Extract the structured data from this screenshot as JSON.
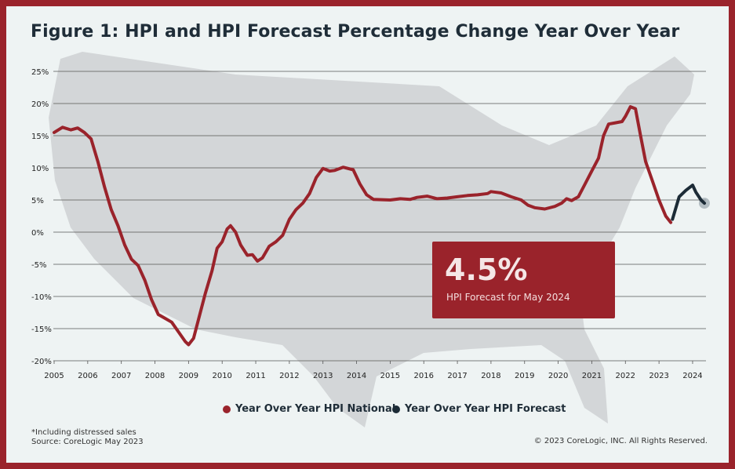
{
  "title": "Figure 1: HPI and HPI Forecast Percentage Change Year Over Year",
  "colors": {
    "national": "#9a232b",
    "forecast": "#1c2b36",
    "map": "#d3d6d8",
    "background": "#eef3f3",
    "border": "#9a232b"
  },
  "callout": {
    "value": "4.5%",
    "label": "HPI Forecast for May 2024"
  },
  "legend": [
    {
      "label": "Year Over Year HPI National",
      "color": "#9a232b"
    },
    {
      "label": "Year Over Year HPI Forecast",
      "color": "#1c2b36"
    }
  ],
  "footnote": "*Including distressed sales",
  "source": "Source: CoreLogic May 2023",
  "copyright": "© 2023 CoreLogic, INC. All Rights Reserved.",
  "chart_data": {
    "type": "line",
    "title": "Figure 1: HPI and HPI Forecast Percentage Change Year Over Year",
    "xlim": [
      2005,
      2024.5
    ],
    "ylim": [
      -20,
      25
    ],
    "grid": true,
    "legend_position": "bottom",
    "x_ticks": [
      "2005",
      "2006",
      "2007",
      "2008",
      "2009",
      "2010",
      "2011",
      "2012",
      "2013",
      "2014",
      "2015",
      "2016",
      "2017",
      "2018",
      "2019",
      "2020",
      "2021",
      "2022",
      "2023",
      "2024"
    ],
    "y_ticks": [
      "25%",
      "20%",
      "15%",
      "10%",
      "5%",
      "0%",
      "-5%",
      "-10%",
      "-15%",
      "-20%"
    ],
    "series": [
      {
        "name": "Year Over Year HPI National",
        "color": "#9a232b",
        "points": [
          [
            2005.0,
            15.5
          ],
          [
            2005.25,
            16.3
          ],
          [
            2005.5,
            15.9
          ],
          [
            2005.7,
            16.2
          ],
          [
            2005.9,
            15.5
          ],
          [
            2006.1,
            14.5
          ],
          [
            2006.3,
            11
          ],
          [
            2006.5,
            7
          ],
          [
            2006.7,
            3.5
          ],
          [
            2006.9,
            1
          ],
          [
            2007.1,
            -2
          ],
          [
            2007.3,
            -4.2
          ],
          [
            2007.5,
            -5.2
          ],
          [
            2007.7,
            -7.5
          ],
          [
            2007.9,
            -10.5
          ],
          [
            2008.1,
            -12.8
          ],
          [
            2008.3,
            -13.4
          ],
          [
            2008.5,
            -14
          ],
          [
            2008.7,
            -15.5
          ],
          [
            2008.9,
            -17
          ],
          [
            2009.0,
            -17.5
          ],
          [
            2009.15,
            -16.5
          ],
          [
            2009.3,
            -13.5
          ],
          [
            2009.5,
            -9.5
          ],
          [
            2009.7,
            -6
          ],
          [
            2009.85,
            -2.5
          ],
          [
            2010.0,
            -1.5
          ],
          [
            2010.15,
            0.5
          ],
          [
            2010.25,
            1
          ],
          [
            2010.4,
            0
          ],
          [
            2010.55,
            -2
          ],
          [
            2010.75,
            -3.6
          ],
          [
            2010.9,
            -3.5
          ],
          [
            2011.05,
            -4.5
          ],
          [
            2011.2,
            -4
          ],
          [
            2011.4,
            -2.2
          ],
          [
            2011.6,
            -1.5
          ],
          [
            2011.8,
            -0.5
          ],
          [
            2012.0,
            2
          ],
          [
            2012.2,
            3.5
          ],
          [
            2012.4,
            4.5
          ],
          [
            2012.6,
            6
          ],
          [
            2012.8,
            8.5
          ],
          [
            2013.0,
            9.9
          ],
          [
            2013.2,
            9.5
          ],
          [
            2013.35,
            9.6
          ],
          [
            2013.6,
            10.1
          ],
          [
            2013.9,
            9.7
          ],
          [
            2014.1,
            7.5
          ],
          [
            2014.3,
            5.8
          ],
          [
            2014.5,
            5.1
          ],
          [
            2015.0,
            5
          ],
          [
            2015.3,
            5.2
          ],
          [
            2015.6,
            5.1
          ],
          [
            2015.8,
            5.4
          ],
          [
            2016.1,
            5.6
          ],
          [
            2016.4,
            5.2
          ],
          [
            2016.7,
            5.3
          ],
          [
            2017.0,
            5.5
          ],
          [
            2017.3,
            5.7
          ],
          [
            2017.6,
            5.8
          ],
          [
            2017.9,
            6.0
          ],
          [
            2018.0,
            6.3
          ],
          [
            2018.3,
            6.1
          ],
          [
            2018.6,
            5.5
          ],
          [
            2018.9,
            5
          ],
          [
            2019.1,
            4.2
          ],
          [
            2019.3,
            3.8
          ],
          [
            2019.6,
            3.6
          ],
          [
            2019.9,
            4
          ],
          [
            2020.1,
            4.5
          ],
          [
            2020.25,
            5.2
          ],
          [
            2020.4,
            4.9
          ],
          [
            2020.6,
            5.5
          ],
          [
            2020.8,
            7.5
          ],
          [
            2021.0,
            9.5
          ],
          [
            2021.2,
            11.5
          ],
          [
            2021.35,
            15
          ],
          [
            2021.5,
            16.8
          ],
          [
            2021.7,
            17
          ],
          [
            2021.9,
            17.2
          ],
          [
            2022.0,
            18
          ],
          [
            2022.15,
            19.5
          ],
          [
            2022.3,
            19.2
          ],
          [
            2022.45,
            15
          ],
          [
            2022.6,
            11
          ],
          [
            2022.8,
            8
          ],
          [
            2023.0,
            5
          ],
          [
            2023.2,
            2.5
          ],
          [
            2023.35,
            1.5
          ]
        ]
      },
      {
        "name": "Year Over Year HPI Forecast",
        "color": "#1c2b36",
        "points": [
          [
            2023.4,
            2
          ],
          [
            2023.6,
            5.5
          ],
          [
            2023.8,
            6.5
          ],
          [
            2024.0,
            7.3
          ],
          [
            2024.1,
            6.2
          ],
          [
            2024.25,
            5
          ],
          [
            2024.35,
            4.5
          ]
        ]
      }
    ],
    "highlight_point": [
      2024.35,
      4.5
    ]
  }
}
